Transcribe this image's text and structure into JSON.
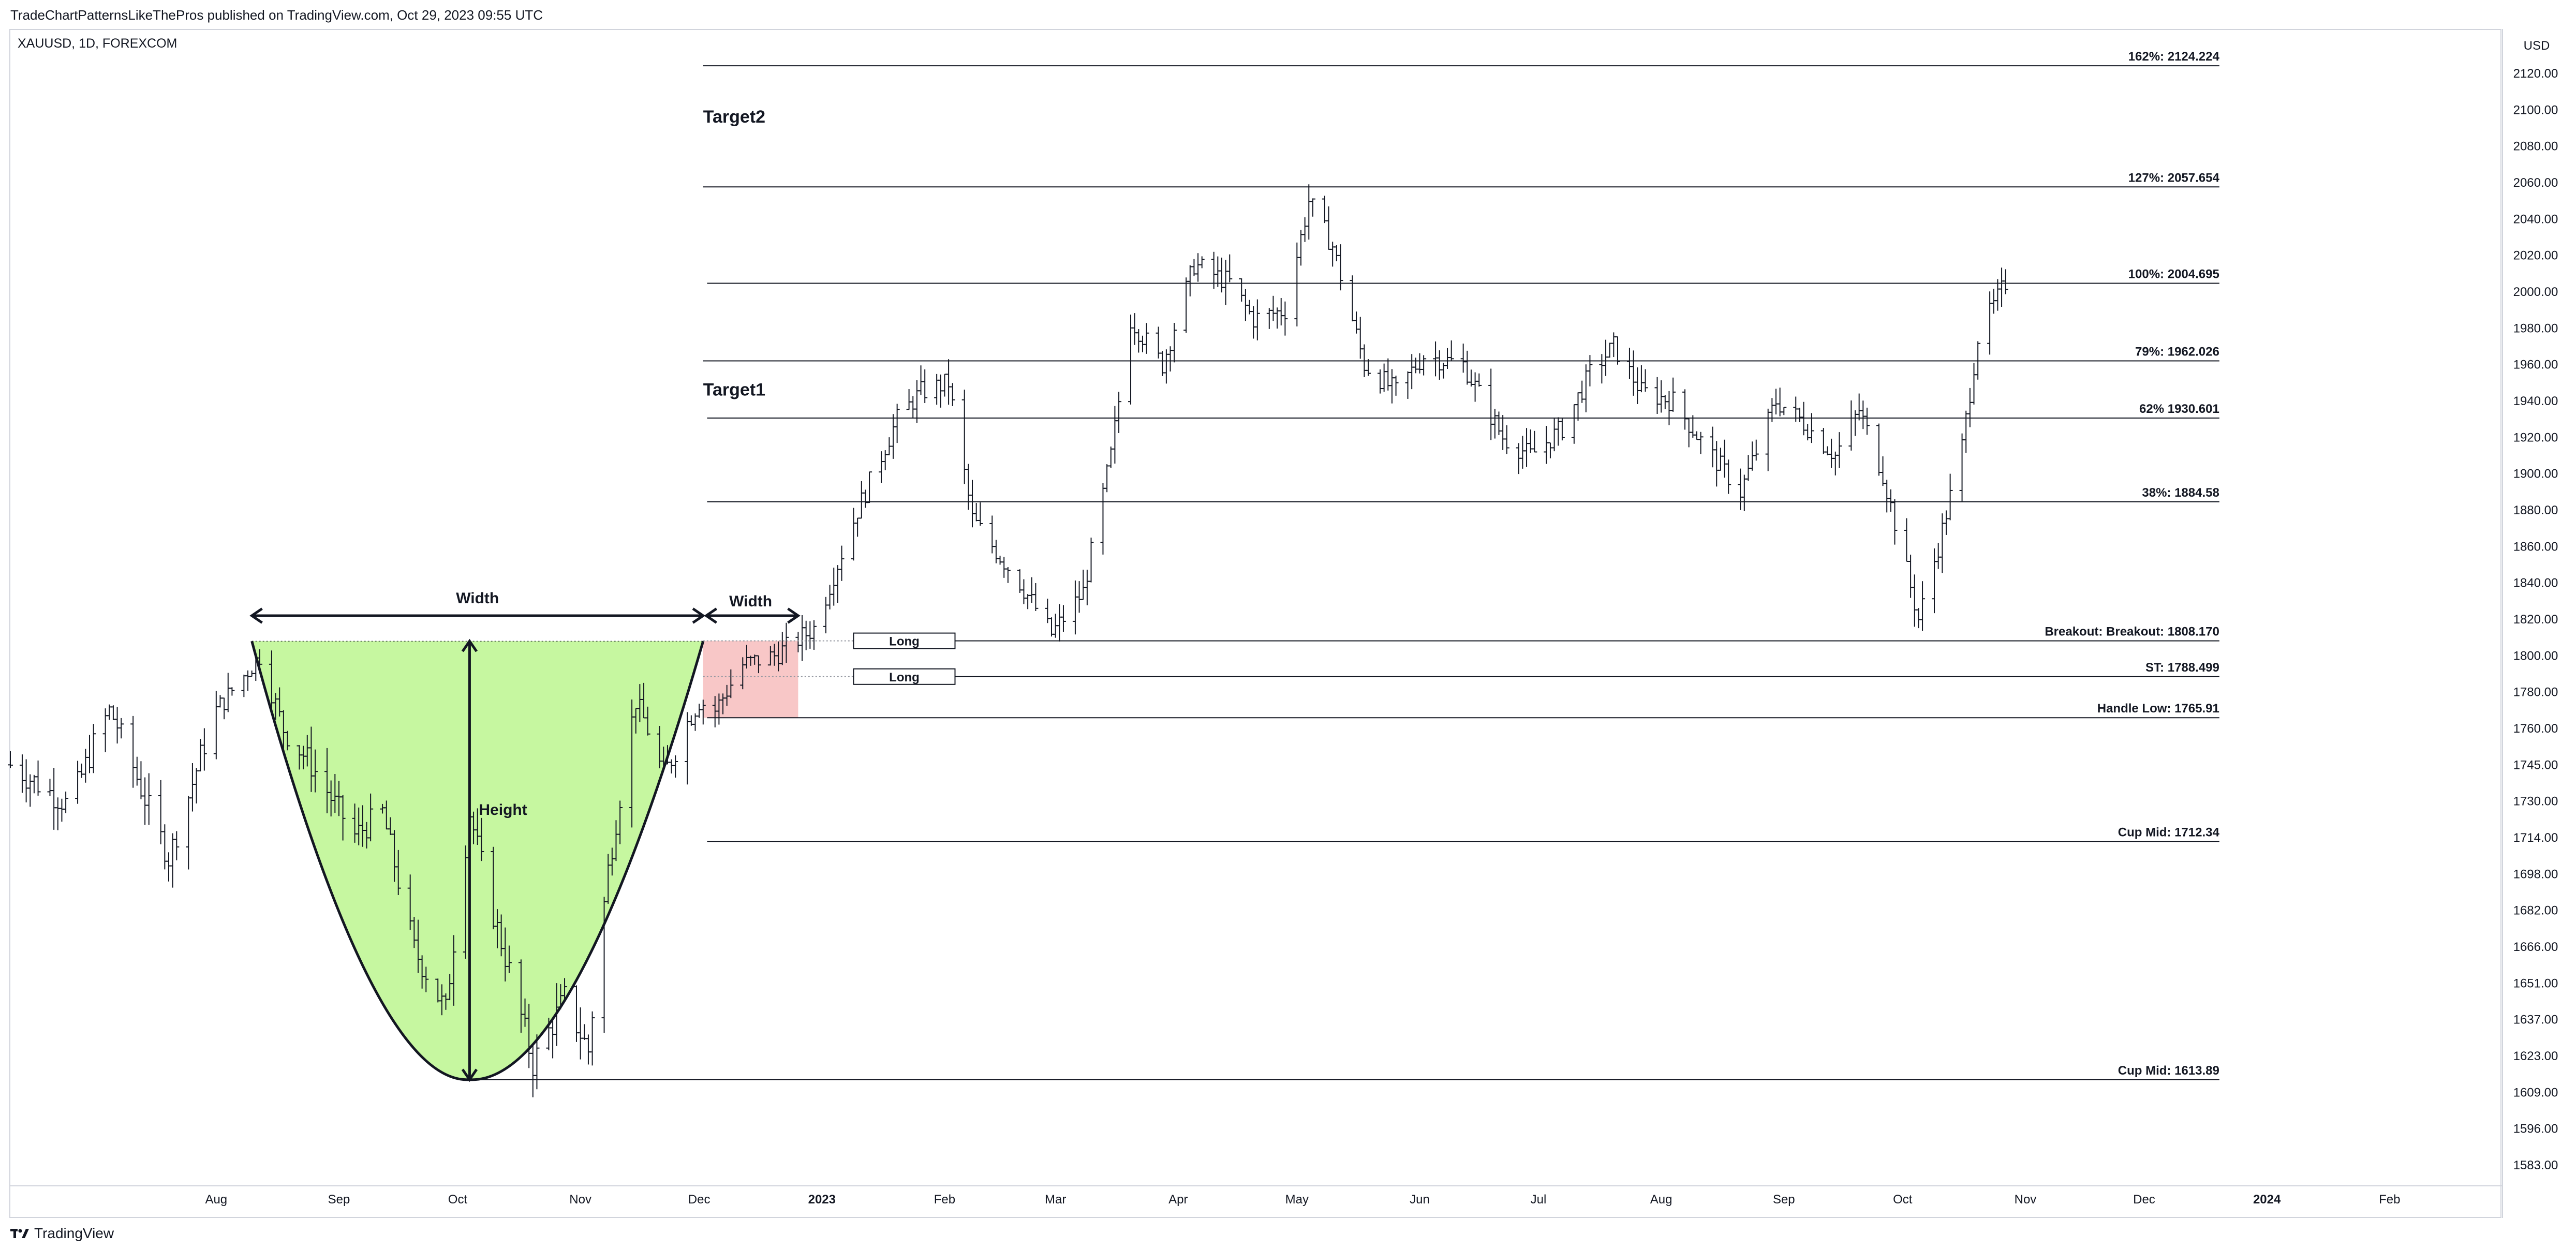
{
  "header": {
    "published_by": "TradeChartPatternsLikeThePros published on TradingView.com, Oct 29, 2023 09:55 UTC"
  },
  "footer": {
    "brand": "TradingView",
    "logo_icon": "tradingview-logo-icon"
  },
  "chart_data": {
    "type": "ohlc",
    "symbol_label": "XAUUSD, 1D, FOREXCOM",
    "currency": "USD",
    "x_range": [
      "2022-06-10",
      "2024-02-29"
    ],
    "x_ticks": [
      {
        "label": "Aug",
        "date": "2022-08-01"
      },
      {
        "label": "Sep",
        "date": "2022-09-01"
      },
      {
        "label": "Oct",
        "date": "2022-10-01"
      },
      {
        "label": "Nov",
        "date": "2022-11-01"
      },
      {
        "label": "Dec",
        "date": "2022-12-01"
      },
      {
        "label": "2023",
        "date": "2023-01-01",
        "bold": true
      },
      {
        "label": "Feb",
        "date": "2023-02-01"
      },
      {
        "label": "Mar",
        "date": "2023-03-01"
      },
      {
        "label": "Apr",
        "date": "2023-04-01"
      },
      {
        "label": "May",
        "date": "2023-05-01"
      },
      {
        "label": "Jun",
        "date": "2023-06-01"
      },
      {
        "label": "Jul",
        "date": "2023-07-01"
      },
      {
        "label": "Aug",
        "date": "2023-08-01"
      },
      {
        "label": "Sep",
        "date": "2023-09-01"
      },
      {
        "label": "Oct",
        "date": "2023-10-01"
      },
      {
        "label": "Nov",
        "date": "2023-11-01"
      },
      {
        "label": "Dec",
        "date": "2023-12-01"
      },
      {
        "label": "2024",
        "date": "2024-01-01",
        "bold": true
      },
      {
        "label": "Feb",
        "date": "2024-02-01"
      }
    ],
    "y_ticks": [
      {
        "label": "2120.00",
        "value": 2120
      },
      {
        "label": "2100.00",
        "value": 2100
      },
      {
        "label": "2080.00",
        "value": 2080
      },
      {
        "label": "2060.00",
        "value": 2060
      },
      {
        "label": "2040.00",
        "value": 2040
      },
      {
        "label": "2020.00",
        "value": 2020
      },
      {
        "label": "2000.00",
        "value": 2000
      },
      {
        "label": "1980.00",
        "value": 1980
      },
      {
        "label": "1960.00",
        "value": 1960
      },
      {
        "label": "1940.00",
        "value": 1940
      },
      {
        "label": "1920.00",
        "value": 1920
      },
      {
        "label": "1900.00",
        "value": 1900
      },
      {
        "label": "1880.00",
        "value": 1880
      },
      {
        "label": "1860.00",
        "value": 1860
      },
      {
        "label": "1840.00",
        "value": 1840
      },
      {
        "label": "1820.00",
        "value": 1820
      },
      {
        "label": "1800.00",
        "value": 1800
      },
      {
        "label": "1780.00",
        "value": 1780
      },
      {
        "label": "1760.00",
        "value": 1760
      },
      {
        "label": "1745.00",
        "value": 1745
      },
      {
        "label": "1730.00",
        "value": 1730
      },
      {
        "label": "1714.00",
        "value": 1714
      },
      {
        "label": "1698.00",
        "value": 1698
      },
      {
        "label": "1682.00",
        "value": 1682
      },
      {
        "label": "1666.00",
        "value": 1666
      },
      {
        "label": "1651.00",
        "value": 1651
      },
      {
        "label": "1637.00",
        "value": 1637
      },
      {
        "label": "1623.00",
        "value": 1623
      },
      {
        "label": "1609.00",
        "value": 1609
      },
      {
        "label": "1596.00",
        "value": 1596
      },
      {
        "label": "1583.00",
        "value": 1583
      }
    ],
    "price_path": [
      [
        "2022-06-10",
        1745
      ],
      [
        "2022-06-25",
        1728
      ],
      [
        "2022-07-05",
        1770
      ],
      [
        "2022-07-20",
        1705
      ],
      [
        "2022-08-01",
        1770
      ],
      [
        "2022-08-12",
        1800
      ],
      [
        "2022-08-18",
        1760
      ],
      [
        "2022-08-25",
        1745
      ],
      [
        "2022-09-05",
        1715
      ],
      [
        "2022-09-12",
        1725
      ],
      [
        "2022-09-20",
        1665
      ],
      [
        "2022-09-28",
        1640
      ],
      [
        "2022-10-04",
        1725
      ],
      [
        "2022-10-10",
        1680
      ],
      [
        "2022-10-20",
        1620
      ],
      [
        "2022-10-28",
        1645
      ],
      [
        "2022-11-03",
        1625
      ],
      [
        "2022-11-08",
        1700
      ],
      [
        "2022-11-15",
        1775
      ],
      [
        "2022-11-22",
        1740
      ],
      [
        "2022-12-01",
        1775
      ],
      [
        "2022-12-05",
        1770
      ],
      [
        "2022-12-12",
        1795
      ],
      [
        "2022-12-20",
        1800
      ],
      [
        "2022-12-30",
        1815
      ],
      [
        "2023-01-10",
        1880
      ],
      [
        "2023-01-20",
        1930
      ],
      [
        "2023-01-26",
        1945
      ],
      [
        "2023-02-02",
        1950
      ],
      [
        "2023-02-08",
        1875
      ],
      [
        "2023-02-20",
        1840
      ],
      [
        "2023-02-28",
        1812
      ],
      [
        "2023-03-08",
        1835
      ],
      [
        "2023-03-15",
        1910
      ],
      [
        "2023-03-20",
        1985
      ],
      [
        "2023-03-28",
        1960
      ],
      [
        "2023-04-05",
        2015
      ],
      [
        "2023-04-14",
        2005
      ],
      [
        "2023-04-20",
        1985
      ],
      [
        "2023-04-28",
        1990
      ],
      [
        "2023-05-04",
        2050
      ],
      [
        "2023-05-10",
        2025
      ],
      [
        "2023-05-18",
        1960
      ],
      [
        "2023-05-26",
        1945
      ],
      [
        "2023-06-02",
        1965
      ],
      [
        "2023-06-12",
        1960
      ],
      [
        "2023-06-22",
        1920
      ],
      [
        "2023-06-29",
        1910
      ],
      [
        "2023-07-07",
        1925
      ],
      [
        "2023-07-14",
        1955
      ],
      [
        "2023-07-20",
        1970
      ],
      [
        "2023-07-27",
        1945
      ],
      [
        "2023-08-04",
        1940
      ],
      [
        "2023-08-12",
        1915
      ],
      [
        "2023-08-21",
        1890
      ],
      [
        "2023-08-30",
        1940
      ],
      [
        "2023-09-05",
        1930
      ],
      [
        "2023-09-14",
        1910
      ],
      [
        "2023-09-20",
        1935
      ],
      [
        "2023-09-26",
        1900
      ],
      [
        "2023-10-05",
        1820
      ],
      [
        "2023-10-10",
        1860
      ],
      [
        "2023-10-16",
        1915
      ],
      [
        "2023-10-20",
        1975
      ],
      [
        "2023-10-27",
        2005
      ]
    ],
    "levels": [
      {
        "name": "162%",
        "label": "162%: 2124.224",
        "value": 2124.224,
        "start": "2022-12-02"
      },
      {
        "name": "127%",
        "label": "127%: 2057.654",
        "value": 2057.654,
        "start": "2022-12-02"
      },
      {
        "name": "100%",
        "label": "100%: 2004.695",
        "value": 2004.695,
        "start": "2022-12-03"
      },
      {
        "name": "79%",
        "label": "79%: 1962.026",
        "value": 1962.026,
        "start": "2022-12-02"
      },
      {
        "name": "62%",
        "label": "62% 1930.601",
        "value": 1930.601,
        "start": "2022-12-03"
      },
      {
        "name": "38%",
        "label": "38%: 1884.58",
        "value": 1884.58,
        "start": "2022-12-03"
      },
      {
        "name": "Breakout",
        "label": "Breakout: Breakout: 1808.170",
        "value": 1808.17,
        "start": "2023-01-28"
      },
      {
        "name": "ST",
        "label": "ST: 1788.499",
        "value": 1788.499,
        "start": "2023-01-28"
      },
      {
        "name": "Handle Low",
        "label": "Handle Low: 1765.91",
        "value": 1765.91,
        "start": "2022-12-03"
      },
      {
        "name": "Cup Mid",
        "label": "Cup Mid: 1712.34",
        "value": 1712.34,
        "start": "2022-12-03"
      },
      {
        "name": "Cup Mid",
        "label": "Cup Mid: 1613.89",
        "value": 1613.89,
        "start": "2022-10-04"
      }
    ],
    "level_end": "2023-12-20",
    "annotations": {
      "target1": "Target1",
      "target2": "Target2",
      "cup_width": "Width",
      "handle_width": "Width",
      "height": "Height",
      "long_1": "Long",
      "long_2": "Long"
    },
    "cup": {
      "left": [
        "2022-08-10",
        1808
      ],
      "bottom": [
        "2022-10-04",
        1613.89
      ],
      "right": [
        "2022-12-02",
        1808
      ]
    },
    "handle": {
      "start": "2022-12-02",
      "end": "2022-12-26",
      "top": 1808.17,
      "bottom": 1765.91
    }
  }
}
